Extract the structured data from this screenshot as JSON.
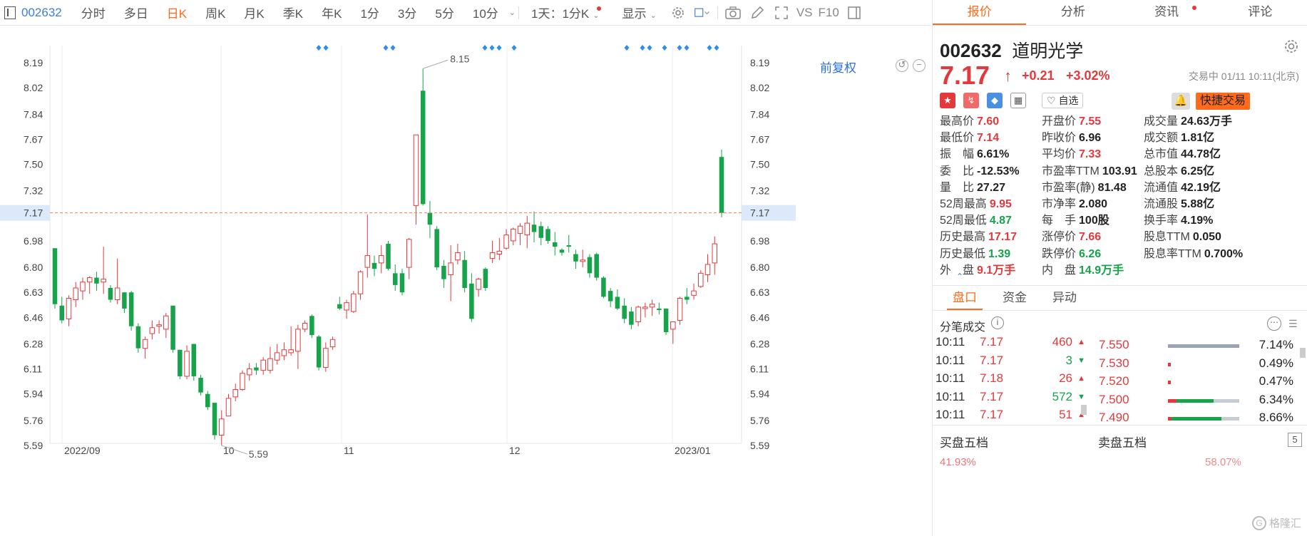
{
  "toolbar": {
    "code": "002632",
    "items": [
      "分时",
      "多日",
      "日K",
      "周K",
      "月K",
      "季K",
      "年K",
      "1分",
      "3分",
      "5分",
      "10分"
    ],
    "active": "日K",
    "multi": "1天：1分K",
    "display": "显示",
    "icons": [
      "gear-icon",
      "square-icon",
      "camera-icon",
      "pencil-icon",
      "expand-icon"
    ],
    "vs": "VS",
    "f10": "F10"
  },
  "chart_controls": {
    "adjust": "前复权"
  },
  "chart_data": {
    "type": "candlestick",
    "ytick_labels": [
      "8.19",
      "8.02",
      "7.84",
      "7.67",
      "7.50",
      "7.32",
      "7.17",
      "6.98",
      "6.80",
      "6.63",
      "6.46",
      "6.28",
      "6.11",
      "5.94",
      "5.76",
      "5.59"
    ],
    "ylim": [
      5.49,
      8.27
    ],
    "x_labels": [
      "2022/09",
      "10",
      "11",
      "12",
      "2023/01"
    ],
    "current_price_label": "7.17",
    "max_label": "8.15",
    "min_label": "5.59",
    "up_color": "#e4393c",
    "down_color": "#16a34a",
    "candles": [
      {
        "o": 6.93,
        "h": 6.93,
        "l": 6.52,
        "c": 6.55
      },
      {
        "o": 6.54,
        "h": 6.6,
        "l": 6.42,
        "c": 6.44
      },
      {
        "o": 6.45,
        "h": 6.61,
        "l": 6.4,
        "c": 6.59
      },
      {
        "o": 6.58,
        "h": 6.7,
        "l": 6.53,
        "c": 6.66
      },
      {
        "o": 6.64,
        "h": 6.73,
        "l": 6.58,
        "c": 6.7
      },
      {
        "o": 6.7,
        "h": 6.74,
        "l": 6.62,
        "c": 6.73
      },
      {
        "o": 6.73,
        "h": 6.77,
        "l": 6.64,
        "c": 6.69
      },
      {
        "o": 6.7,
        "h": 6.94,
        "l": 6.62,
        "c": 6.72
      },
      {
        "o": 6.66,
        "h": 6.68,
        "l": 6.56,
        "c": 6.58
      },
      {
        "o": 6.58,
        "h": 6.86,
        "l": 6.55,
        "c": 6.66
      },
      {
        "o": 6.63,
        "h": 6.63,
        "l": 6.49,
        "c": 6.52
      },
      {
        "o": 6.63,
        "h": 6.64,
        "l": 6.37,
        "c": 6.4
      },
      {
        "o": 6.4,
        "h": 6.42,
        "l": 6.22,
        "c": 6.25
      },
      {
        "o": 6.25,
        "h": 6.33,
        "l": 6.18,
        "c": 6.31
      },
      {
        "o": 6.35,
        "h": 6.44,
        "l": 6.31,
        "c": 6.39
      },
      {
        "o": 6.4,
        "h": 6.44,
        "l": 6.35,
        "c": 6.41
      },
      {
        "o": 6.38,
        "h": 6.49,
        "l": 6.32,
        "c": 6.47
      },
      {
        "o": 6.54,
        "h": 6.54,
        "l": 6.22,
        "c": 6.24
      },
      {
        "o": 6.24,
        "h": 6.24,
        "l": 6.04,
        "c": 6.06
      },
      {
        "o": 6.06,
        "h": 6.27,
        "l": 6.04,
        "c": 6.23
      },
      {
        "o": 6.28,
        "h": 6.28,
        "l": 6.03,
        "c": 6.06
      },
      {
        "o": 6.05,
        "h": 6.07,
        "l": 5.93,
        "c": 5.95
      },
      {
        "o": 5.94,
        "h": 5.96,
        "l": 5.83,
        "c": 5.85
      },
      {
        "o": 5.88,
        "h": 5.88,
        "l": 5.63,
        "c": 5.66
      },
      {
        "o": 5.66,
        "h": 5.83,
        "l": 5.59,
        "c": 5.77
      },
      {
        "o": 5.79,
        "h": 5.94,
        "l": 5.79,
        "c": 5.91
      },
      {
        "o": 5.92,
        "h": 6.01,
        "l": 5.89,
        "c": 5.97
      },
      {
        "o": 5.97,
        "h": 6.1,
        "l": 5.96,
        "c": 6.08
      },
      {
        "o": 6.07,
        "h": 6.15,
        "l": 6.03,
        "c": 6.11
      },
      {
        "o": 6.12,
        "h": 6.15,
        "l": 6.07,
        "c": 6.1
      },
      {
        "o": 6.1,
        "h": 6.19,
        "l": 6.07,
        "c": 6.17
      },
      {
        "o": 6.1,
        "h": 6.26,
        "l": 6.08,
        "c": 6.18
      },
      {
        "o": 6.17,
        "h": 6.28,
        "l": 6.14,
        "c": 6.22
      },
      {
        "o": 6.2,
        "h": 6.29,
        "l": 6.17,
        "c": 6.24
      },
      {
        "o": 6.22,
        "h": 6.4,
        "l": 6.2,
        "c": 6.24
      },
      {
        "o": 6.23,
        "h": 6.41,
        "l": 6.11,
        "c": 6.38
      },
      {
        "o": 6.38,
        "h": 6.44,
        "l": 6.36,
        "c": 6.42
      },
      {
        "o": 6.47,
        "h": 6.48,
        "l": 6.32,
        "c": 6.34
      },
      {
        "o": 6.33,
        "h": 6.34,
        "l": 6.1,
        "c": 6.12
      },
      {
        "o": 6.12,
        "h": 6.29,
        "l": 6.09,
        "c": 6.25
      },
      {
        "o": 6.26,
        "h": 6.33,
        "l": 6.24,
        "c": 6.31
      },
      {
        "o": 6.55,
        "h": 6.6,
        "l": 6.51,
        "c": 6.52
      },
      {
        "o": 6.51,
        "h": 6.58,
        "l": 6.45,
        "c": 6.56
      },
      {
        "o": 6.5,
        "h": 6.64,
        "l": 6.49,
        "c": 6.62
      },
      {
        "o": 6.62,
        "h": 6.78,
        "l": 6.58,
        "c": 6.77
      },
      {
        "o": 6.8,
        "h": 7.16,
        "l": 6.73,
        "c": 6.88
      },
      {
        "o": 6.83,
        "h": 6.88,
        "l": 6.74,
        "c": 6.79
      },
      {
        "o": 6.83,
        "h": 6.95,
        "l": 6.76,
        "c": 6.88
      },
      {
        "o": 6.96,
        "h": 6.98,
        "l": 6.78,
        "c": 6.79
      },
      {
        "o": 6.76,
        "h": 6.82,
        "l": 6.64,
        "c": 6.68
      },
      {
        "o": 6.76,
        "h": 6.79,
        "l": 6.61,
        "c": 6.63
      },
      {
        "o": 6.8,
        "h": 7.0,
        "l": 6.72,
        "c": 6.99
      },
      {
        "o": 7.22,
        "h": 7.7,
        "l": 7.09,
        "c": 7.7
      },
      {
        "o": 8.0,
        "h": 8.15,
        "l": 7.22,
        "c": 7.23
      },
      {
        "o": 7.17,
        "h": 7.25,
        "l": 7.0,
        "c": 7.09
      },
      {
        "o": 7.06,
        "h": 7.08,
        "l": 6.78,
        "c": 6.8
      },
      {
        "o": 6.81,
        "h": 6.85,
        "l": 6.66,
        "c": 6.72
      },
      {
        "o": 6.75,
        "h": 6.95,
        "l": 6.57,
        "c": 6.83
      },
      {
        "o": 6.85,
        "h": 6.96,
        "l": 6.82,
        "c": 6.9
      },
      {
        "o": 6.85,
        "h": 6.91,
        "l": 6.63,
        "c": 6.66
      },
      {
        "o": 6.69,
        "h": 6.76,
        "l": 6.43,
        "c": 6.45
      },
      {
        "o": 6.65,
        "h": 6.73,
        "l": 6.6,
        "c": 6.72
      },
      {
        "o": 6.79,
        "h": 6.8,
        "l": 6.64,
        "c": 6.66
      },
      {
        "o": 6.86,
        "h": 6.98,
        "l": 6.83,
        "c": 6.9
      },
      {
        "o": 6.89,
        "h": 7.0,
        "l": 6.85,
        "c": 6.91
      },
      {
        "o": 6.93,
        "h": 7.06,
        "l": 6.92,
        "c": 7.02
      },
      {
        "o": 6.98,
        "h": 7.07,
        "l": 6.95,
        "c": 7.06
      },
      {
        "o": 7.03,
        "h": 7.1,
        "l": 6.95,
        "c": 7.08
      },
      {
        "o": 7.02,
        "h": 7.15,
        "l": 6.93,
        "c": 7.1
      },
      {
        "o": 7.09,
        "h": 7.18,
        "l": 6.97,
        "c": 7.04
      },
      {
        "o": 7.08,
        "h": 7.11,
        "l": 6.95,
        "c": 7.0
      },
      {
        "o": 7.06,
        "h": 7.08,
        "l": 6.96,
        "c": 6.98
      },
      {
        "o": 6.97,
        "h": 7.04,
        "l": 6.88,
        "c": 6.94
      },
      {
        "o": 6.92,
        "h": 6.93,
        "l": 6.88,
        "c": 6.9
      },
      {
        "o": 6.95,
        "h": 7.02,
        "l": 6.9,
        "c": 6.94
      },
      {
        "o": 6.89,
        "h": 6.92,
        "l": 6.79,
        "c": 6.84
      },
      {
        "o": 6.84,
        "h": 6.92,
        "l": 6.8,
        "c": 6.85
      },
      {
        "o": 6.87,
        "h": 6.89,
        "l": 6.73,
        "c": 6.76
      },
      {
        "o": 6.89,
        "h": 6.9,
        "l": 6.71,
        "c": 6.73
      },
      {
        "o": 6.73,
        "h": 6.74,
        "l": 6.59,
        "c": 6.6
      },
      {
        "o": 6.64,
        "h": 6.66,
        "l": 6.53,
        "c": 6.57
      },
      {
        "o": 6.6,
        "h": 6.65,
        "l": 6.51,
        "c": 6.52
      },
      {
        "o": 6.54,
        "h": 6.59,
        "l": 6.42,
        "c": 6.45
      },
      {
        "o": 6.5,
        "h": 6.53,
        "l": 6.38,
        "c": 6.41
      },
      {
        "o": 6.43,
        "h": 6.54,
        "l": 6.4,
        "c": 6.53
      },
      {
        "o": 6.52,
        "h": 6.56,
        "l": 6.46,
        "c": 6.53
      },
      {
        "o": 6.53,
        "h": 6.58,
        "l": 6.47,
        "c": 6.55
      },
      {
        "o": 6.52,
        "h": 6.56,
        "l": 6.48,
        "c": 6.51
      },
      {
        "o": 6.52,
        "h": 6.52,
        "l": 6.34,
        "c": 6.36
      },
      {
        "o": 6.38,
        "h": 6.43,
        "l": 6.28,
        "c": 6.43
      },
      {
        "o": 6.44,
        "h": 6.6,
        "l": 6.41,
        "c": 6.59
      },
      {
        "o": 6.6,
        "h": 6.66,
        "l": 6.55,
        "c": 6.58
      },
      {
        "o": 6.61,
        "h": 6.69,
        "l": 6.58,
        "c": 6.64
      },
      {
        "o": 6.67,
        "h": 6.78,
        "l": 6.66,
        "c": 6.76
      },
      {
        "o": 6.75,
        "h": 6.89,
        "l": 6.7,
        "c": 6.82
      },
      {
        "o": 6.83,
        "h": 7.01,
        "l": 6.75,
        "c": 6.96
      },
      {
        "o": 7.55,
        "h": 7.6,
        "l": 7.14,
        "c": 7.17
      }
    ]
  },
  "panel": {
    "tabs": [
      "报价",
      "分析",
      "资讯",
      "评论"
    ],
    "active_tab": "报价",
    "code": "002632",
    "name": "道明光学",
    "price": "7.17",
    "change": "+0.21",
    "change_pct": "+3.02%",
    "trade_time": "交易中 01/11 10:11(北京)",
    "fav_label": "自选",
    "quick_trade": "快捷交易",
    "stats": [
      [
        {
          "label": "最高价",
          "value": "7.60",
          "color": "red"
        },
        {
          "label": "开盘价",
          "value": "7.55",
          "color": "red"
        },
        {
          "label": "成交量",
          "value": "24.63万手",
          "color": "dark"
        }
      ],
      [
        {
          "label": "最低价",
          "value": "7.14",
          "color": "red"
        },
        {
          "label": "昨收价",
          "value": "6.96",
          "color": "dark"
        },
        {
          "label": "成交额",
          "value": "1.81亿",
          "color": "dark"
        }
      ],
      [
        {
          "label": "振　幅",
          "value": "6.61%",
          "color": "dark"
        },
        {
          "label": "平均价",
          "value": "7.33",
          "color": "red"
        },
        {
          "label": "总市值",
          "value": "44.78亿",
          "color": "dark"
        }
      ],
      [
        {
          "label": "委　比",
          "value": "-12.53%",
          "color": "dark"
        },
        {
          "label": "市盈率TTM",
          "value": "103.91",
          "color": "dark"
        },
        {
          "label": "总股本",
          "value": "6.25亿",
          "color": "dark"
        }
      ],
      [
        {
          "label": "量　比",
          "value": "27.27",
          "color": "dark"
        },
        {
          "label": "市盈率(静)",
          "value": "81.48",
          "color": "dark"
        },
        {
          "label": "流通值",
          "value": "42.19亿",
          "color": "dark"
        }
      ],
      [
        {
          "label": "52周最高",
          "value": "9.95",
          "color": "red"
        },
        {
          "label": "市净率",
          "value": "2.080",
          "color": "dark"
        },
        {
          "label": "流通股",
          "value": "5.88亿",
          "color": "dark"
        }
      ],
      [
        {
          "label": "52周最低",
          "value": "4.87",
          "color": "green"
        },
        {
          "label": "每　手",
          "value": "100股",
          "color": "dark"
        },
        {
          "label": "换手率",
          "value": "4.19%",
          "color": "dark"
        }
      ],
      [
        {
          "label": "历史最高",
          "value": "17.17",
          "color": "red"
        },
        {
          "label": "涨停价",
          "value": "7.66",
          "color": "red"
        },
        {
          "label": "股息TTM",
          "value": "0.050",
          "color": "dark"
        }
      ],
      [
        {
          "label": "历史最低",
          "value": "1.39",
          "color": "green"
        },
        {
          "label": "跌停价",
          "value": "6.26",
          "color": "green"
        },
        {
          "label": "股息率TTM",
          "value": "0.700%",
          "color": "dark"
        }
      ],
      [
        {
          "label": "外　盘",
          "value": "9.1万手",
          "color": "red"
        },
        {
          "label": "内　盘",
          "value": "14.9万手",
          "color": "green"
        }
      ]
    ],
    "subtabs": [
      "盘口",
      "资金",
      "异动"
    ],
    "active_subtab": "盘口",
    "ticks_title": "分笔成交",
    "ticks": [
      {
        "time": "10:11",
        "price": "7.17",
        "vol": "460",
        "dir": "up"
      },
      {
        "time": "10:11",
        "price": "7.17",
        "vol": "3",
        "dir": "down"
      },
      {
        "time": "10:11",
        "price": "7.18",
        "vol": "26",
        "dir": "up"
      },
      {
        "time": "10:11",
        "price": "7.17",
        "vol": "572",
        "dir": "down"
      },
      {
        "time": "10:11",
        "price": "7.17",
        "vol": "51",
        "dir": "up"
      }
    ],
    "orderbook": [
      {
        "price": "7.550",
        "pct": "7.14%",
        "red": 0,
        "green": 0
      },
      {
        "price": "7.530",
        "pct": "0.49%",
        "red": 0.04,
        "green": 0
      },
      {
        "price": "7.520",
        "pct": "0.47%",
        "red": 0.04,
        "green": 0
      },
      {
        "price": "7.500",
        "pct": "6.34%",
        "red": 0.12,
        "green": 0.52
      },
      {
        "price": "7.490",
        "pct": "8.66%",
        "red": 0.05,
        "green": 0.7
      }
    ],
    "buy5": "买盘五档",
    "sell5": "卖盘五档",
    "badge": "5",
    "partial_left": "41.93%",
    "partial_right": "58.07%"
  },
  "watermark": "格隆汇"
}
